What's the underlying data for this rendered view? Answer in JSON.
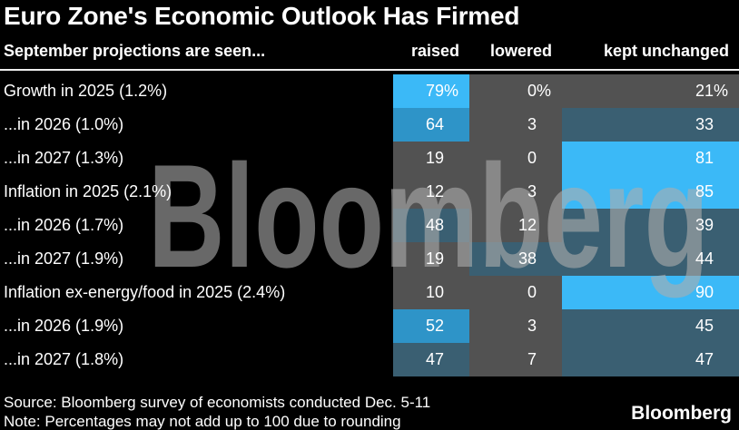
{
  "title": "Euro Zone's Economic Outlook Has Firmed",
  "header": {
    "label": "September projections are seen...",
    "columns": [
      "raised",
      "lowered",
      "kept unchanged"
    ]
  },
  "table": {
    "rows": [
      {
        "label": "Growth in 2025 (1.2%)",
        "values": [
          "79%",
          "0%",
          "21%"
        ]
      },
      {
        "label": "...in 2026 (1.0%)",
        "values": [
          "64",
          "3",
          "33"
        ]
      },
      {
        "label": "...in 2027 (1.3%)",
        "values": [
          "19",
          "0",
          "81"
        ]
      },
      {
        "label": "Inflation in 2025 (2.1%)",
        "values": [
          "12",
          "3",
          "85"
        ]
      },
      {
        "label": "...in 2026 (1.7%)",
        "values": [
          "48",
          "12",
          "39"
        ]
      },
      {
        "label": "...in 2027 (1.9%)",
        "values": [
          "19",
          "38",
          "44"
        ]
      },
      {
        "label": "Inflation ex-energy/food in 2025 (2.4%)",
        "values": [
          "10",
          "0",
          "90"
        ]
      },
      {
        "label": "...in 2026 (1.9%)",
        "values": [
          "52",
          "3",
          "45"
        ]
      },
      {
        "label": "...in 2027 (1.8%)",
        "values": [
          "47",
          "7",
          "47"
        ]
      }
    ]
  },
  "palette": {
    "background": "#000000",
    "text": "#FFFFFF",
    "divider": "#EDEDED",
    "cell_neutral": "#525252",
    "cell_low": "#3A5F72",
    "cell_medium": "#2E94C8",
    "cell_high": "#3BB9F7"
  },
  "thresholds": {
    "low": 25,
    "medium": 50,
    "high": 70
  },
  "watermark": "Bloomberg",
  "footer": {
    "source": "Source: Bloomberg survey of economists conducted Dec. 5-11",
    "note": "Note: Percentages may not add up to 100 due to rounding",
    "logo": "Bloomberg"
  },
  "chart_data": {
    "type": "heatmap",
    "title": "Euro Zone's Economic Outlook Has Firmed",
    "subtitle": "September projections are seen...",
    "columns": [
      "raised",
      "lowered",
      "kept unchanged"
    ],
    "rows": [
      "Growth in 2025 (1.2%)",
      "...in 2026 (1.0%)",
      "...in 2027 (1.3%)",
      "Inflation in 2025 (2.1%)",
      "...in 2026 (1.7%)",
      "...in 2027 (1.9%)",
      "Inflation ex-energy/food in 2025 (2.4%)",
      "...in 2026 (1.9%)",
      "...in 2027 (1.8%)"
    ],
    "values": [
      [
        79,
        0,
        21
      ],
      [
        64,
        3,
        33
      ],
      [
        19,
        0,
        81
      ],
      [
        12,
        3,
        85
      ],
      [
        48,
        12,
        39
      ],
      [
        19,
        38,
        44
      ],
      [
        10,
        0,
        90
      ],
      [
        52,
        3,
        45
      ],
      [
        47,
        7,
        47
      ]
    ],
    "unit": "%",
    "color_scale": {
      "#525252": "0-24",
      "#3A5F72": "25-49",
      "#2E94C8": "50-69",
      "#3BB9F7": "70-100"
    },
    "source": "Source: Bloomberg survey of economists conducted Dec. 5-11",
    "note": "Note: Percentages may not add up to 100 due to rounding"
  }
}
